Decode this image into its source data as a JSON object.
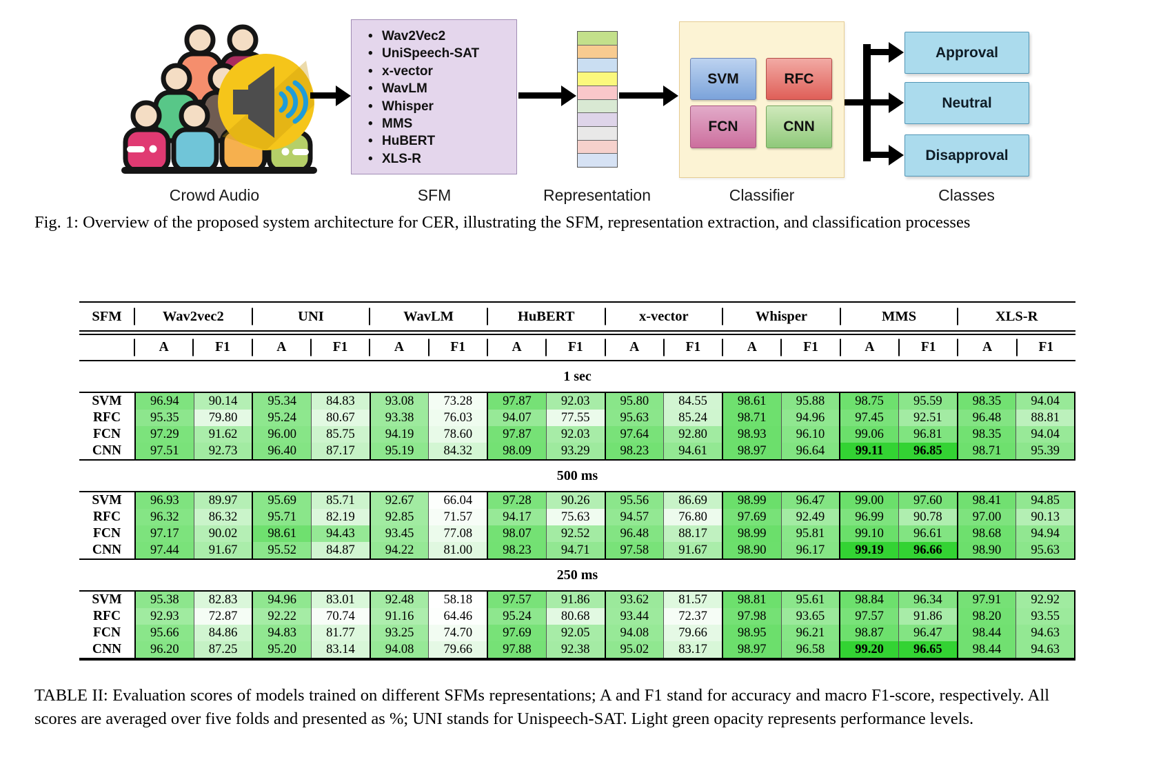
{
  "figure": {
    "caption": "Fig. 1: Overview of the proposed system architecture for CER, illustrating the SFM, representation extraction, and classification processes",
    "stage_labels": [
      "Crowd Audio",
      "SFM",
      "Representation",
      "Classifier",
      "Classes"
    ],
    "icons": {
      "crowd": "crowd-people-icon",
      "audio": "loudspeaker-icon"
    },
    "sfm_box": {
      "bg": "#e4d6ec",
      "border": "#a08cb4",
      "models": [
        "Wav2Vec2",
        "UniSpeech-SAT",
        "x-vector",
        "WavLM",
        "Whisper",
        "MMS",
        "HuBERT",
        "XLS-R"
      ]
    },
    "representation": {
      "segment_colors": [
        "#c3e08b",
        "#f8cb90",
        "#cadef2",
        "#fbf87d",
        "#f9c7ca",
        "#d9e9d3",
        "#ded4e9",
        "#e9e8e8",
        "#f6d1cc",
        "#d6e2f4"
      ]
    },
    "classifier_box": {
      "bg": "#fcf3d4",
      "border": "#e6cc92",
      "models": [
        {
          "label": "SVM",
          "from": "#bdd3f0",
          "to": "#7ba3da",
          "border": "#6b84b8"
        },
        {
          "label": "RFC",
          "from": "#f2aaa4",
          "to": "#df5f58",
          "border": "#b24a46"
        },
        {
          "label": "FCN",
          "from": "#e2abc9",
          "to": "#cc6e9d",
          "border": "#a85580"
        },
        {
          "label": "CNN",
          "from": "#cfe9bb",
          "to": "#8fc97a",
          "border": "#74a45c"
        }
      ]
    },
    "classes": {
      "labels": [
        "Approval",
        "Neutral",
        "Disapproval"
      ],
      "bg": "#abdbed",
      "border": "#5195b5"
    }
  },
  "table": {
    "caption": "TABLE II: Evaluation scores of models trained on different SFMs representations; A and F1 stand for accuracy and macro F1-score, respectively. All scores are averaged over five folds and presented as %; UNI stands for Unispeech-SAT. Light green opacity represents performance levels.",
    "corner": "SFM",
    "groups": [
      "Wav2vec2",
      "UNI",
      "WavLM",
      "HuBERT",
      "x-vector",
      "Whisper",
      "MMS",
      "XLS-R"
    ],
    "subheaders": [
      "A",
      "F1"
    ],
    "row_labels": [
      "SVM",
      "RFC",
      "FCN",
      "CNN"
    ],
    "heat": {
      "base_rgb": "0,200,0",
      "min": 55,
      "range": 45,
      "exponent": 3,
      "max_alpha": 0.62,
      "highlight_alpha": 0.8
    },
    "sections": [
      {
        "label": "1 sec",
        "bold_cells": [
          [
            3,
            12
          ],
          [
            3,
            13
          ]
        ],
        "rows": [
          [
            "96.94",
            "90.14",
            "95.34",
            "84.83",
            "93.08",
            "73.28",
            "97.87",
            "92.03",
            "95.80",
            "84.55",
            "98.61",
            "95.88",
            "98.75",
            "95.59",
            "98.35",
            "94.04"
          ],
          [
            "95.35",
            "79.80",
            "95.24",
            "80.67",
            "93.38",
            "76.03",
            "94.07",
            "77.55",
            "95.63",
            "85.24",
            "98.71",
            "94.96",
            "97.45",
            "92.51",
            "96.48",
            "88.81"
          ],
          [
            "97.29",
            "91.62",
            "96.00",
            "85.75",
            "94.19",
            "78.60",
            "97.87",
            "92.03",
            "97.64",
            "92.80",
            "98.93",
            "96.10",
            "99.06",
            "96.81",
            "98.35",
            "94.04"
          ],
          [
            "97.51",
            "92.73",
            "96.40",
            "87.17",
            "95.19",
            "84.32",
            "98.09",
            "93.29",
            "98.23",
            "94.61",
            "98.97",
            "96.64",
            "99.11",
            "96.85",
            "98.71",
            "95.39"
          ]
        ]
      },
      {
        "label": "500 ms",
        "bold_cells": [
          [
            3,
            12
          ],
          [
            3,
            13
          ]
        ],
        "rows": [
          [
            "96.93",
            "89.97",
            "95.69",
            "85.71",
            "92.67",
            "66.04",
            "97.28",
            "90.26",
            "95.56",
            "86.69",
            "98.99",
            "96.47",
            "99.00",
            "97.60",
            "98.41",
            "94.85"
          ],
          [
            "96.32",
            "86.32",
            "95.71",
            "82.19",
            "92.85",
            "71.57",
            "94.17",
            "75.63",
            "94.57",
            "76.80",
            "97.69",
            "92.49",
            "96.99",
            "90.78",
            "97.00",
            "90.13"
          ],
          [
            "97.17",
            "90.02",
            "98.61",
            "94.43",
            "93.45",
            "77.08",
            "98.07",
            "92.52",
            "96.48",
            "88.17",
            "98.99",
            "95.81",
            "99.10",
            "96.61",
            "98.68",
            "94.94"
          ],
          [
            "97.44",
            "91.67",
            "95.52",
            "84.87",
            "94.22",
            "81.00",
            "98.23",
            "94.71",
            "97.58",
            "91.67",
            "98.90",
            "96.17",
            "99.19",
            "96.66",
            "98.90",
            "95.63"
          ]
        ]
      },
      {
        "label": "250 ms",
        "bold_cells": [
          [
            3,
            12
          ],
          [
            3,
            13
          ]
        ],
        "rows": [
          [
            "95.38",
            "82.83",
            "94.96",
            "83.01",
            "92.48",
            "58.18",
            "97.57",
            "91.86",
            "93.62",
            "81.57",
            "98.81",
            "95.61",
            "98.84",
            "96.34",
            "97.91",
            "92.92"
          ],
          [
            "92.93",
            "72.87",
            "92.22",
            "70.74",
            "91.16",
            "64.46",
            "95.24",
            "80.68",
            "93.44",
            "72.37",
            "97.98",
            "93.65",
            "97.57",
            "91.86",
            "98.20",
            "93.55"
          ],
          [
            "95.66",
            "84.86",
            "94.83",
            "81.77",
            "93.25",
            "74.70",
            "97.69",
            "92.05",
            "94.08",
            "79.66",
            "98.95",
            "96.21",
            "98.87",
            "96.47",
            "98.44",
            "94.63"
          ],
          [
            "96.20",
            "87.25",
            "95.20",
            "83.14",
            "94.08",
            "79.66",
            "97.88",
            "92.38",
            "95.02",
            "83.17",
            "98.97",
            "96.58",
            "99.20",
            "96.65",
            "98.44",
            "94.63"
          ]
        ]
      }
    ]
  }
}
